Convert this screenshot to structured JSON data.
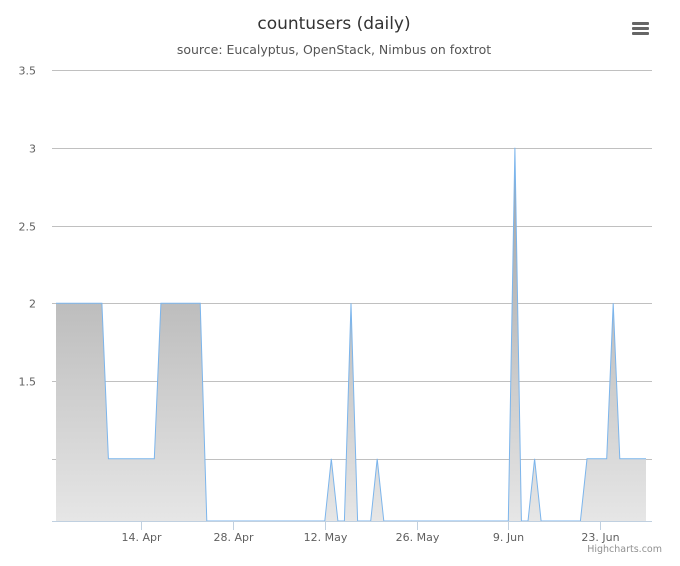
{
  "chart_data": {
    "type": "area",
    "title": "countusers (daily)",
    "subtitle": "source: Eucalyptus, OpenStack, Nimbus on foxtrot",
    "xlabel": "",
    "ylabel": "",
    "ylim": [
      0.6,
      3.5
    ],
    "y_ticks": [
      1.5,
      2,
      2.5,
      3,
      3.5
    ],
    "y_tick_labels": [
      "1.5",
      "2",
      "2.5",
      "3",
      "3.5"
    ],
    "x_ticks": [
      "2014-04-14",
      "2014-04-28",
      "2014-05-12",
      "2014-05-26",
      "2014-06-09",
      "2014-06-23"
    ],
    "x_tick_labels": [
      "14. Apr",
      "28. Apr",
      "12. May",
      "26. May",
      "9. Jun",
      "23. Jun"
    ],
    "grid": true,
    "legend": "none",
    "series": [
      {
        "color": "#7cb5ec",
        "fill": "#a8a8a8",
        "points": [
          [
            "2014-04-01",
            2
          ],
          [
            "2014-04-08",
            2
          ],
          [
            "2014-04-09",
            1
          ],
          [
            "2014-04-16",
            1
          ],
          [
            "2014-04-17",
            2
          ],
          [
            "2014-04-23",
            2
          ],
          [
            "2014-04-24",
            0.6
          ],
          [
            "2014-05-12",
            0.6
          ],
          [
            "2014-05-13",
            1
          ],
          [
            "2014-05-14",
            0.6
          ],
          [
            "2014-05-15",
            0.6
          ],
          [
            "2014-05-16",
            2
          ],
          [
            "2014-05-17",
            0.6
          ],
          [
            "2014-05-19",
            0.6
          ],
          [
            "2014-05-20",
            1
          ],
          [
            "2014-05-21",
            0.6
          ],
          [
            "2014-06-09",
            0.6
          ],
          [
            "2014-06-10",
            3
          ],
          [
            "2014-06-11",
            0.6
          ],
          [
            "2014-06-12",
            0.6
          ],
          [
            "2014-06-13",
            1
          ],
          [
            "2014-06-14",
            0.6
          ],
          [
            "2014-06-20",
            0.6
          ],
          [
            "2014-06-21",
            1
          ],
          [
            "2014-06-24",
            1
          ],
          [
            "2014-06-25",
            2
          ],
          [
            "2014-06-26",
            1
          ],
          [
            "2014-06-30",
            1
          ]
        ]
      }
    ]
  },
  "menu": {
    "icon": "hamburger-menu-icon"
  },
  "credits": "Highcharts.com"
}
